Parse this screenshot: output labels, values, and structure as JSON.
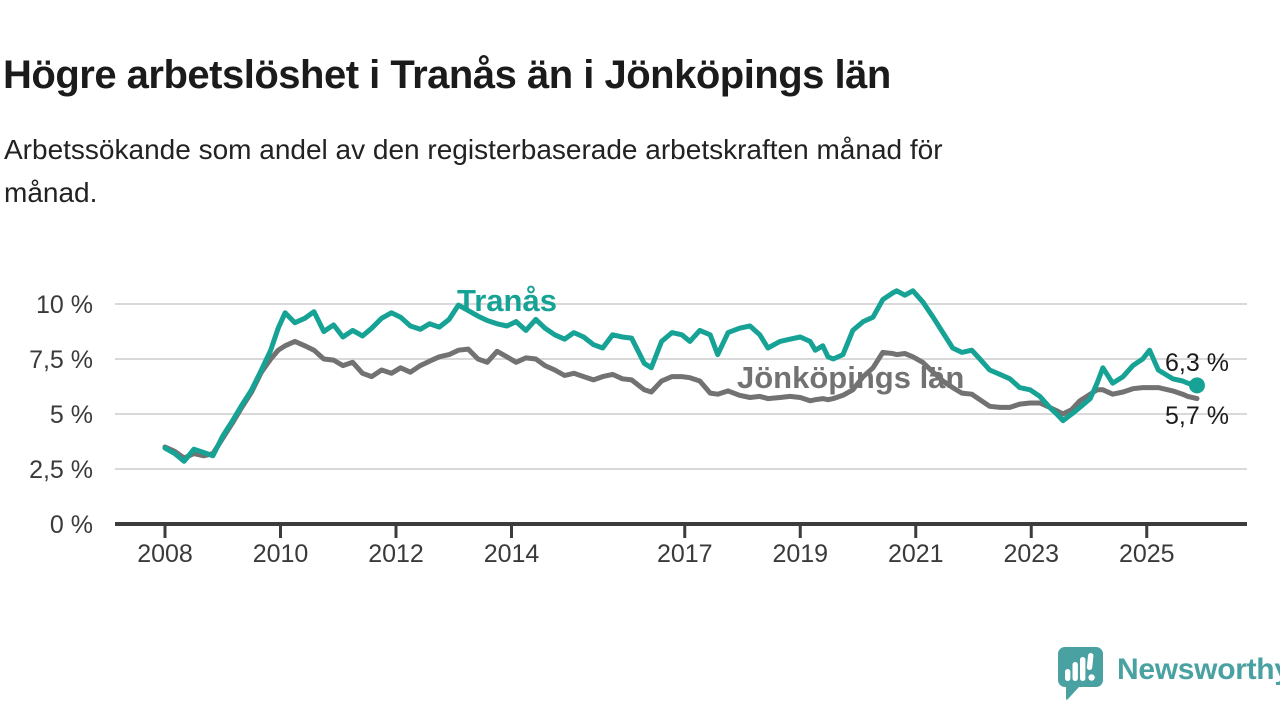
{
  "header": {
    "title": "Högre arbetslöshet i Tranås än i Jönköpings län",
    "subtitle_line1": "Arbetssökande som andel av den registerbaserade arbetskraften månad för",
    "subtitle_line2": "månad."
  },
  "chart_data": {
    "type": "line",
    "title": "Högre arbetslöshet i Tranås än i Jönköpings län",
    "subtitle": "Arbetssökande som andel av den registerbaserade arbetskraften månad för månad.",
    "xlabel": "",
    "ylabel": "",
    "unit": "%",
    "grid": "horizontal",
    "legend_position": "inline-labels-on-chart",
    "xlim": [
      2007.1,
      2026.7
    ],
    "ylim": [
      0,
      11.6
    ],
    "xticks": [
      {
        "value": 2008,
        "label": "2008"
      },
      {
        "value": 2010,
        "label": "2010"
      },
      {
        "value": 2012,
        "label": "2012"
      },
      {
        "value": 2014,
        "label": "2014"
      },
      {
        "value": 2017,
        "label": "2017"
      },
      {
        "value": 2019,
        "label": "2019"
      },
      {
        "value": 2021,
        "label": "2021"
      },
      {
        "value": 2023,
        "label": "2023"
      },
      {
        "value": 2025,
        "label": "2025"
      }
    ],
    "yticks": [
      {
        "value": 0,
        "label": "0 %"
      },
      {
        "value": 2.5,
        "label": "2,5 %"
      },
      {
        "value": 5,
        "label": "5 %"
      },
      {
        "value": 7.5,
        "label": "7,5 %"
      },
      {
        "value": 10,
        "label": "10 %"
      }
    ],
    "x_years": [
      2008.0,
      2008.17,
      2008.33,
      2008.5,
      2008.67,
      2008.83,
      2009.0,
      2009.17,
      2009.33,
      2009.5,
      2009.67,
      2009.83,
      2009.96,
      2010.08,
      2010.25,
      2010.42,
      2010.58,
      2010.75,
      2010.92,
      2011.08,
      2011.25,
      2011.42,
      2011.58,
      2011.75,
      2011.92,
      2012.08,
      2012.25,
      2012.42,
      2012.58,
      2012.75,
      2012.92,
      2013.08,
      2013.25,
      2013.42,
      2013.58,
      2013.75,
      2013.92,
      2014.08,
      2014.25,
      2014.42,
      2014.58,
      2014.75,
      2014.92,
      2015.08,
      2015.25,
      2015.42,
      2015.58,
      2015.75,
      2015.92,
      2016.08,
      2016.3,
      2016.42,
      2016.6,
      2016.78,
      2016.95,
      2017.09,
      2017.26,
      2017.44,
      2017.57,
      2017.75,
      2017.95,
      2018.13,
      2018.3,
      2018.44,
      2018.65,
      2018.82,
      2019.0,
      2019.17,
      2019.26,
      2019.39,
      2019.48,
      2019.57,
      2019.74,
      2019.91,
      2020.09,
      2020.26,
      2020.43,
      2020.6,
      2020.67,
      2020.81,
      2020.95,
      2021.12,
      2021.3,
      2021.47,
      2021.64,
      2021.8,
      2021.97,
      2022.11,
      2022.28,
      2022.46,
      2022.63,
      2022.8,
      2022.98,
      2023.15,
      2023.32,
      2023.44,
      2023.55,
      2023.7,
      2023.84,
      2024.02,
      2024.14,
      2024.24,
      2024.41,
      2024.59,
      2024.76,
      2024.93,
      2025.05,
      2025.2,
      2025.45,
      2025.62,
      2025.71,
      2025.87
    ],
    "series": [
      {
        "name": "Tranås",
        "color": "#16a294",
        "end_label": "6,3 %",
        "last_value": 6.3,
        "values": [
          3.45,
          3.2,
          2.85,
          3.4,
          3.25,
          3.1,
          4.0,
          4.7,
          5.4,
          6.1,
          7.0,
          7.9,
          8.9,
          9.6,
          9.15,
          9.35,
          9.65,
          8.75,
          9.05,
          8.5,
          8.8,
          8.55,
          8.9,
          9.35,
          9.6,
          9.4,
          9.0,
          8.85,
          9.1,
          8.95,
          9.3,
          9.95,
          9.7,
          9.45,
          9.25,
          9.1,
          9.0,
          9.2,
          8.8,
          9.3,
          8.9,
          8.6,
          8.4,
          8.7,
          8.5,
          8.15,
          8.0,
          8.6,
          8.5,
          8.45,
          7.3,
          7.1,
          8.3,
          8.7,
          8.6,
          8.3,
          8.8,
          8.6,
          7.7,
          8.7,
          8.9,
          9.0,
          8.6,
          8.0,
          8.3,
          8.4,
          8.5,
          8.3,
          7.9,
          8.1,
          7.6,
          7.5,
          7.7,
          8.8,
          9.2,
          9.4,
          10.2,
          10.5,
          10.6,
          10.4,
          10.6,
          10.1,
          9.4,
          8.7,
          8.0,
          7.8,
          7.9,
          7.5,
          7.0,
          6.8,
          6.6,
          6.2,
          6.1,
          5.8,
          5.3,
          5.0,
          4.7,
          5.0,
          5.3,
          5.7,
          6.4,
          7.1,
          6.4,
          6.7,
          7.2,
          7.5,
          7.9,
          7.0,
          6.6,
          6.5,
          6.4,
          6.3
        ]
      },
      {
        "name": "Jönköpings län",
        "color": "#727272",
        "end_label": "5,7 %",
        "last_value": 5.7,
        "values": [
          3.5,
          3.3,
          3.0,
          3.2,
          3.1,
          3.2,
          3.9,
          4.6,
          5.3,
          6.0,
          6.9,
          7.5,
          7.9,
          8.1,
          8.3,
          8.1,
          7.9,
          7.5,
          7.45,
          7.2,
          7.35,
          6.85,
          6.7,
          7.0,
          6.85,
          7.1,
          6.9,
          7.2,
          7.4,
          7.6,
          7.7,
          7.9,
          7.95,
          7.5,
          7.35,
          7.85,
          7.6,
          7.35,
          7.55,
          7.5,
          7.2,
          7.0,
          6.75,
          6.85,
          6.7,
          6.55,
          6.7,
          6.8,
          6.6,
          6.55,
          6.1,
          6.0,
          6.5,
          6.7,
          6.7,
          6.65,
          6.5,
          5.95,
          5.9,
          6.05,
          5.85,
          5.75,
          5.8,
          5.7,
          5.75,
          5.8,
          5.75,
          5.6,
          5.65,
          5.7,
          5.65,
          5.7,
          5.85,
          6.1,
          6.7,
          7.1,
          7.8,
          7.75,
          7.7,
          7.75,
          7.6,
          7.35,
          6.9,
          6.5,
          6.2,
          5.95,
          5.9,
          5.65,
          5.35,
          5.3,
          5.3,
          5.45,
          5.5,
          5.5,
          5.3,
          5.15,
          5.0,
          5.2,
          5.6,
          5.9,
          6.1,
          6.1,
          5.9,
          6.0,
          6.15,
          6.2,
          6.2,
          6.2,
          6.05,
          5.9,
          5.8,
          5.7
        ]
      }
    ],
    "axis_color": "#3c3c3c",
    "grid_color": "#d9d9d9",
    "tick_label_color": "#3a3a3a"
  },
  "branding": {
    "logo_text": "Newsworthy",
    "logo_color": "#4aa1a1",
    "logo_icon": "newsworthy-speech-bubble-bar-chart-icon"
  }
}
